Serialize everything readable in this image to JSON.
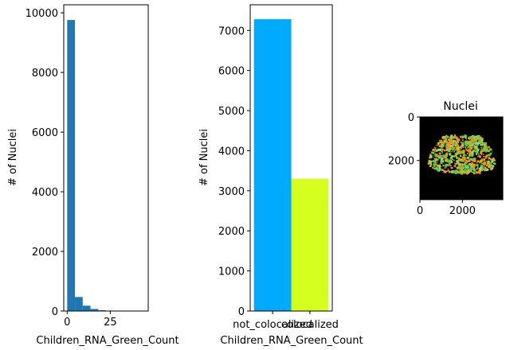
{
  "chart_data": [
    {
      "type": "bar",
      "subtype": "histogram",
      "title": "",
      "xlabel": "Children_RNA_Green_Count",
      "ylabel": "# of Nuclei",
      "xlim": [
        -2,
        47
      ],
      "ylim": [
        0,
        10270
      ],
      "xticks": [
        0,
        25
      ],
      "yticks": [
        0,
        2000,
        4000,
        6000,
        8000,
        10000
      ],
      "bin_edges": [
        0,
        4.5,
        9,
        13.5,
        18,
        22.5,
        27,
        31.5,
        36,
        40.5,
        45
      ],
      "values": [
        9760,
        470,
        180,
        70,
        25,
        12,
        6,
        3,
        2,
        1
      ],
      "bar_color": "#1f77b4",
      "grid": false
    },
    {
      "type": "bar",
      "title": "",
      "xlabel": "Children_RNA_Green_Count",
      "ylabel": "# of Nuclei",
      "categories": [
        "not_colocalized",
        "colocalized"
      ],
      "values": [
        7280,
        3300
      ],
      "colors": [
        "#00aaff",
        "#d4ff1f"
      ],
      "ylim": [
        0,
        7640
      ],
      "yticks": [
        0,
        1000,
        2000,
        3000,
        4000,
        5000,
        6000,
        7000
      ],
      "grid": false
    },
    {
      "type": "image",
      "title": "Nuclei",
      "xlim": [
        0,
        3900
      ],
      "ylim": [
        3800,
        0
      ],
      "xticks": [
        0,
        2000
      ],
      "yticks": [
        0,
        2000
      ],
      "background": "#000000",
      "palette": [
        "#7fe27f",
        "#f28c1c",
        "#4ad14a",
        "#ff9900"
      ]
    }
  ]
}
